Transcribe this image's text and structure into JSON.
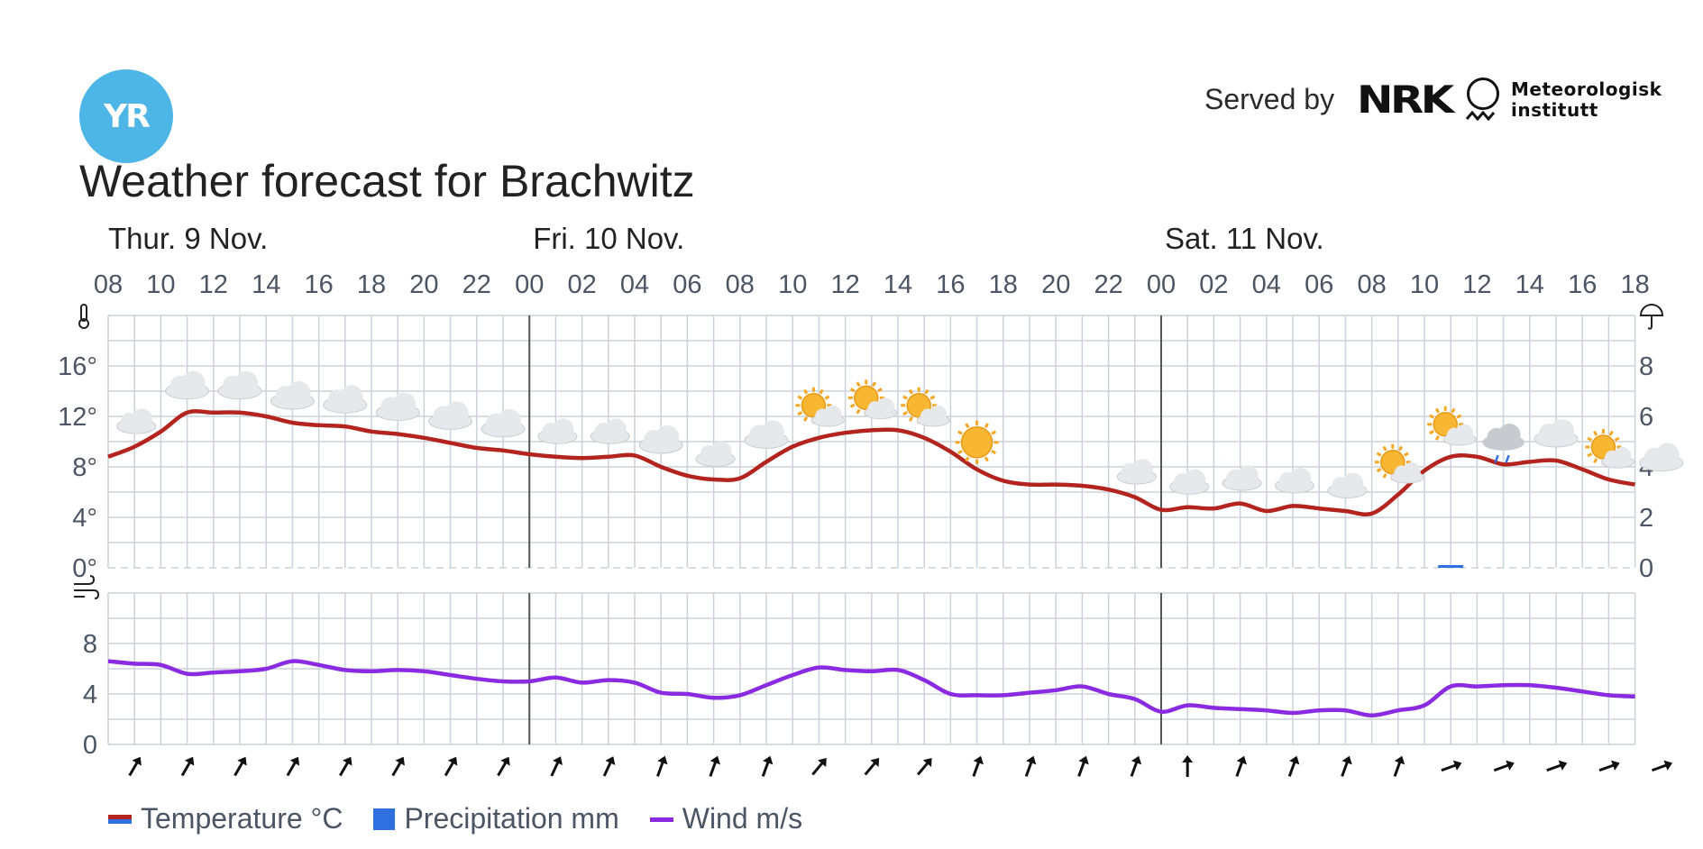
{
  "header": {
    "logo_text": "YR",
    "served_by": "Served by",
    "nrk_logo": "NRK",
    "met_logo_line1": "Meteorologisk",
    "met_logo_line2": "institutt",
    "title": "Weather forecast for Brachwitz"
  },
  "colors": {
    "temperature": "#b3241e",
    "precipitation": "#2f6fe0",
    "wind": "#8a2be2",
    "grid": "#cbd2d9",
    "day_divider": "#555555"
  },
  "chart_data": {
    "type": "line",
    "days": [
      {
        "label": "Thur. 9 Nov.",
        "hour_index": 0
      },
      {
        "label": "Fri. 10 Nov.",
        "hour_index": 16
      },
      {
        "label": "Sat. 11 Nov.",
        "hour_index": 40
      }
    ],
    "hour_ticks": [
      "08",
      "10",
      "12",
      "14",
      "16",
      "18",
      "20",
      "22",
      "00",
      "02",
      "04",
      "06",
      "08",
      "10",
      "12",
      "14",
      "16",
      "18",
      "20",
      "22",
      "00",
      "02",
      "04",
      "06",
      "08",
      "10",
      "12",
      "14",
      "16",
      "18"
    ],
    "temperature": {
      "name": "Temperature °C",
      "y_ticks": [
        "0°",
        "4°",
        "8°",
        "12°",
        "16°"
      ],
      "ylim": [
        0,
        20
      ],
      "x": [
        0,
        1,
        2,
        3,
        4,
        5,
        6,
        7,
        8,
        9,
        10,
        11,
        12,
        13,
        14,
        15,
        16,
        17,
        18,
        19,
        20,
        21,
        22,
        23,
        24,
        25,
        26,
        27,
        28,
        29,
        30,
        31,
        32,
        33,
        34,
        35,
        36,
        37,
        38,
        39,
        40,
        41,
        42,
        43,
        44,
        45,
        46,
        47,
        48,
        49,
        50,
        51,
        52,
        53,
        54,
        55,
        56,
        57,
        58
      ],
      "values": [
        8.8,
        9.6,
        10.8,
        12.3,
        12.3,
        12.3,
        12.0,
        11.5,
        11.3,
        11.2,
        10.8,
        10.6,
        10.3,
        9.9,
        9.5,
        9.3,
        9.0,
        8.8,
        8.7,
        8.8,
        8.9,
        8.0,
        7.3,
        7.0,
        7.1,
        8.4,
        9.6,
        10.3,
        10.7,
        10.9,
        10.9,
        10.3,
        9.2,
        7.8,
        6.9,
        6.6,
        6.6,
        6.5,
        6.2,
        5.6,
        4.6,
        4.8,
        4.7,
        5.1,
        4.5,
        4.9,
        4.7,
        4.5,
        4.3,
        5.8,
        7.7,
        8.8,
        8.8,
        8.2,
        8.4,
        8.5,
        7.8,
        7.0,
        6.6
      ]
    },
    "precipitation": {
      "name": "Precipitation mm",
      "y_ticks": [
        "0",
        "2",
        "4",
        "6",
        "8"
      ],
      "ylim": [
        0,
        10
      ],
      "bars": [
        {
          "hour_index": 51,
          "value": 0.1
        }
      ]
    },
    "wind": {
      "name": "Wind m/s",
      "y_ticks": [
        "0",
        "4",
        "8"
      ],
      "ylim": [
        0,
        12
      ],
      "x": [
        0,
        1,
        2,
        3,
        4,
        5,
        6,
        7,
        8,
        9,
        10,
        11,
        12,
        13,
        14,
        15,
        16,
        17,
        18,
        19,
        20,
        21,
        22,
        23,
        24,
        25,
        26,
        27,
        28,
        29,
        30,
        31,
        32,
        33,
        34,
        35,
        36,
        37,
        38,
        39,
        40,
        41,
        42,
        43,
        44,
        45,
        46,
        47,
        48,
        49,
        50,
        51,
        52,
        53,
        54,
        55,
        56,
        57,
        58
      ],
      "values": [
        6.6,
        6.4,
        6.3,
        5.6,
        5.7,
        5.8,
        6.0,
        6.6,
        6.3,
        5.9,
        5.8,
        5.9,
        5.8,
        5.5,
        5.2,
        5.0,
        5.0,
        5.3,
        4.9,
        5.1,
        4.9,
        4.1,
        4.0,
        3.7,
        3.9,
        4.7,
        5.5,
        6.1,
        5.9,
        5.8,
        5.9,
        5.1,
        4.0,
        3.9,
        3.9,
        4.1,
        4.3,
        4.6,
        4.0,
        3.6,
        2.6,
        3.1,
        2.9,
        2.8,
        2.7,
        2.5,
        2.7,
        2.7,
        2.3,
        2.7,
        3.1,
        4.6,
        4.6,
        4.7,
        4.7,
        4.5,
        4.2,
        3.9,
        3.8
      ]
    },
    "weather_icons": [
      "partly-cloudy-night",
      "cloudy",
      "cloudy",
      "cloudy",
      "cloudy",
      "cloudy",
      "cloudy",
      "cloudy",
      "partly-cloudy-night",
      "partly-cloudy-night",
      "cloudy",
      "partly-cloudy-night",
      "cloudy",
      "fair-day",
      "fair-day",
      "fair-day",
      "clear-day",
      "clear-night",
      "clear-night",
      "partly-cloudy-night",
      "partly-cloudy-night",
      "partly-cloudy-night",
      "partly-cloudy-night",
      "partly-cloudy-night",
      "fair-day",
      "fair-day",
      "light-rain",
      "cloudy",
      "fair-day",
      "cloudy"
    ],
    "wind_direction_degrees": [
      30,
      30,
      30,
      30,
      30,
      30,
      30,
      30,
      25,
      25,
      20,
      20,
      20,
      40,
      40,
      40,
      20,
      20,
      20,
      20,
      0,
      20,
      20,
      20,
      20,
      70,
      70,
      70,
      70,
      70
    ],
    "grid": true
  },
  "legend": {
    "temperature": "Temperature °C",
    "precipitation": "Precipitation mm",
    "wind": "Wind m/s"
  }
}
